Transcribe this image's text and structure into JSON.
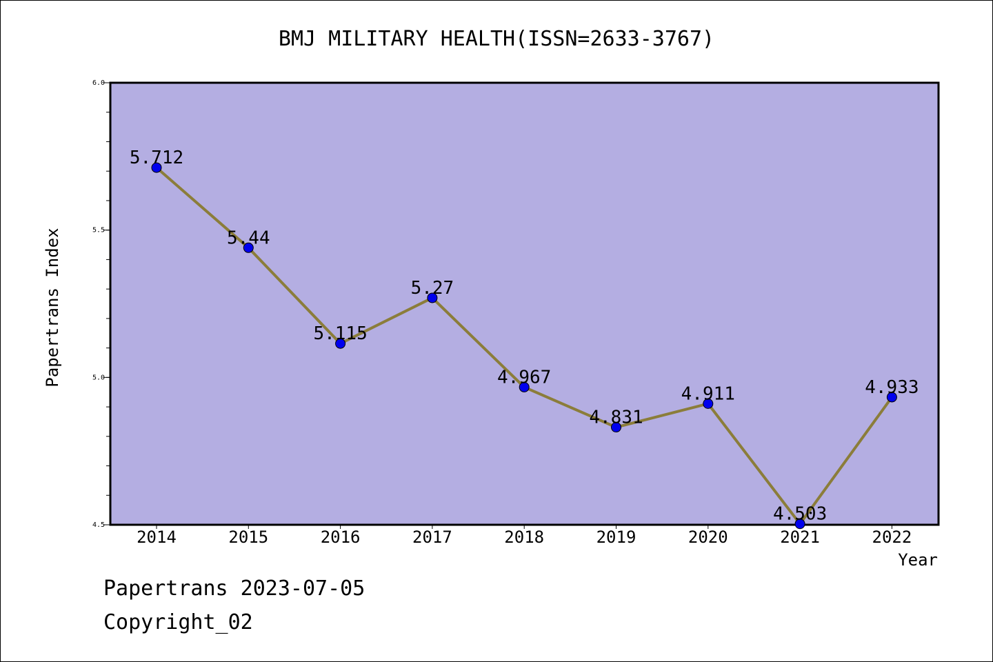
{
  "chart_data": {
    "type": "line",
    "title": "BMJ MILITARY HEALTH(ISSN=2633-3767)",
    "xlabel": "Year",
    "ylabel": "Papertrans Index",
    "categories": [
      "2014",
      "2015",
      "2016",
      "2017",
      "2018",
      "2019",
      "2020",
      "2021",
      "2022"
    ],
    "values": [
      5.712,
      5.44,
      5.115,
      5.27,
      4.967,
      4.831,
      4.911,
      4.503,
      4.933
    ],
    "value_labels": [
      "5.712",
      "5.44",
      "5.115",
      "5.27",
      "4.967",
      "4.831",
      "4.911",
      "4.503",
      "4.933"
    ],
    "ylim": [
      4.5,
      6.0
    ],
    "yticks": [
      "4.5",
      "5.0",
      "5.5",
      "6.0"
    ],
    "grid": false,
    "colors": {
      "plot_background": "#b4aee2",
      "line": "#8b7d3a",
      "marker": "#0000ee"
    }
  },
  "footer": {
    "line1": "Papertrans 2023-07-05",
    "line2": "Copyright_02"
  }
}
